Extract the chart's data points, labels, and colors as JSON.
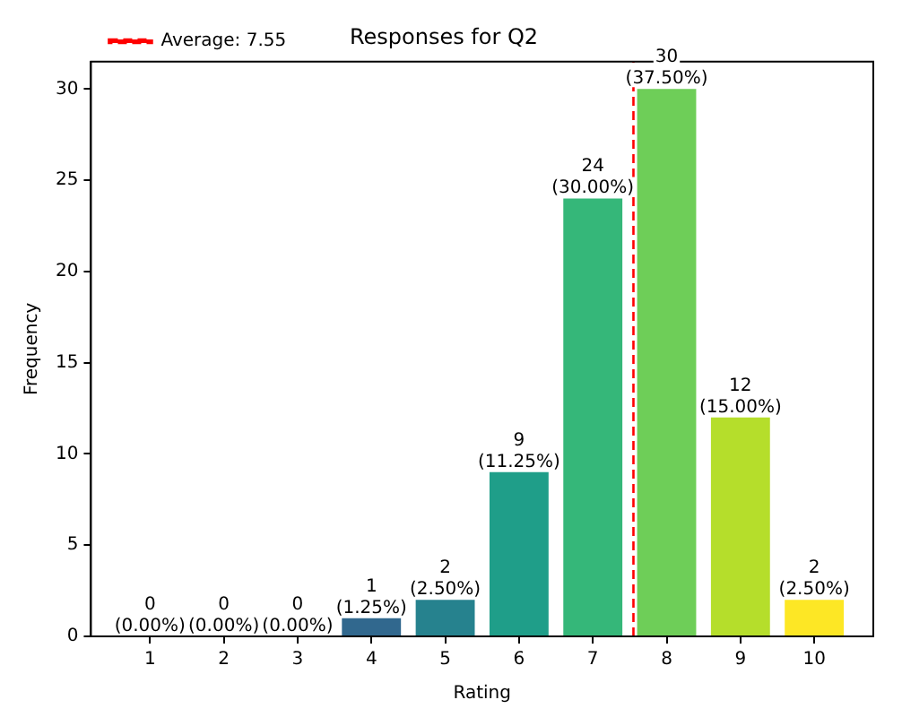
{
  "chart_data": {
    "type": "bar",
    "title": "Responses for Q2",
    "xlabel": "Rating",
    "ylabel": "Frequency",
    "x": [
      1,
      2,
      3,
      4,
      5,
      6,
      7,
      8,
      9,
      10
    ],
    "values": [
      0,
      0,
      0,
      1,
      2,
      9,
      24,
      30,
      12,
      2
    ],
    "colors": [
      "#440154",
      "#482878",
      "#3e4a89",
      "#31688e",
      "#26828e",
      "#1f9e89",
      "#35b779",
      "#6ece58",
      "#b5de2b",
      "#fde725"
    ],
    "value_labels": [
      "0\n(0.00%)",
      "0\n(0.00%)",
      "0\n(0.00%)",
      "1\n(1.25%)",
      "2\n(2.50%)",
      "9\n(11.25%)",
      "24\n(30.00%)",
      "30\n(37.50%)",
      "12\n(15.00%)",
      "2\n(2.50%)"
    ],
    "xlim": [
      0.2,
      10.8
    ],
    "xticks": [
      1,
      2,
      3,
      4,
      5,
      6,
      7,
      8,
      9,
      10
    ],
    "ylim": [
      0,
      31.5
    ],
    "yticks": [
      0,
      5,
      10,
      15,
      20,
      25,
      30
    ],
    "ref_lines": [
      {
        "axis": "x",
        "value": 7.55,
        "label": "Average: 7.55",
        "color": "#ff0000",
        "line_style": "dashed"
      }
    ],
    "legend": "top left",
    "grid": false
  }
}
